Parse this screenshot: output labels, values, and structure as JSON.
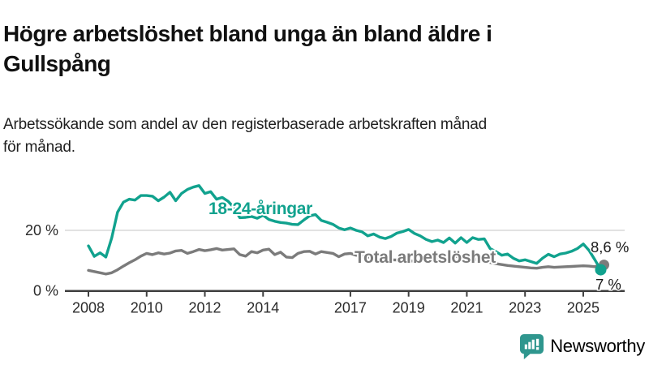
{
  "header": {
    "title_lines": [
      "Högre arbetslöshet bland unga än bland äldre i",
      "Gullspång"
    ],
    "subtitle_lines": [
      "Arbetssökande som andel av den registerbaserade arbetskraften månad",
      "för månad."
    ]
  },
  "colors": {
    "accent_teal": "#11a28e",
    "series_gray": "#7b7b7b",
    "logo_teal": "#2f968e",
    "grid": "#d9d9d9",
    "axis": "#3f3f3f",
    "text": "#1a1a1a"
  },
  "logo": {
    "text": "Newsworthy",
    "icon": "newsworthy-speech-bubble-bar-chart-icon"
  },
  "chart_data": {
    "type": "line",
    "title": "Högre arbetslöshet bland unga än bland äldre i Gullspång",
    "subtitle": "Arbetssökande som andel av den registerbaserade arbetskraften månad för månad.",
    "xlabel": "",
    "ylabel": "",
    "unit": "%",
    "x_unit": "year",
    "x_start": 2008.0,
    "x_step": 0.2,
    "xlim": [
      2008.0,
      2025.6
    ],
    "ylim": [
      0,
      37
    ],
    "grid": "horizontal-at-20-only",
    "y_gridlines": [
      20
    ],
    "x_ticks": [
      2008,
      2010,
      2012,
      2014,
      2017,
      2019,
      2021,
      2023,
      2025
    ],
    "y_ticks": [
      {
        "value": 0,
        "label": "0 %"
      },
      {
        "value": 20,
        "label": "20 %"
      }
    ],
    "legend_position": "inline-labels-on-lines",
    "series": [
      {
        "name": "Total arbetslöshet",
        "color": "#7b7b7b",
        "end_label": "8,6 %",
        "end_value": 8.6,
        "values": [
          6.8,
          6.4,
          6.0,
          5.6,
          6.0,
          7.0,
          8.2,
          9.3,
          10.3,
          11.5,
          12.4,
          12.0,
          12.6,
          12.2,
          12.5,
          13.2,
          13.4,
          12.4,
          13.0,
          13.7,
          13.3,
          13.6,
          14.0,
          13.5,
          13.7,
          13.9,
          12.0,
          11.5,
          13.0,
          12.6,
          13.5,
          13.8,
          12.0,
          12.8,
          11.2,
          11.0,
          12.4,
          13.0,
          13.1,
          12.2,
          13.0,
          12.7,
          12.4,
          11.3,
          12.2,
          12.4,
          11.8,
          11.5,
          11.2,
          11.0,
          10.8,
          10.5,
          10.3,
          10.2,
          10.0,
          9.8,
          9.9,
          10.0,
          9.8,
          9.9,
          10.2,
          11.0,
          11.6,
          11.4,
          11.2,
          11.0,
          10.6,
          10.2,
          9.8,
          9.4,
          9.0,
          8.7,
          8.4,
          8.2,
          8.0,
          7.8,
          7.6,
          7.5,
          7.8,
          8.0,
          7.8,
          7.9,
          8.0,
          8.1,
          8.2,
          8.3,
          8.2,
          8.0,
          8.6
        ]
      },
      {
        "name": "18-24-åringar",
        "color": "#11a28e",
        "end_label": "7 %",
        "end_value": 7.0,
        "values": [
          14.9,
          11.4,
          12.6,
          11.2,
          17.5,
          26.0,
          29.3,
          30.3,
          30.0,
          31.5,
          31.5,
          31.3,
          29.8,
          31.0,
          32.6,
          29.8,
          32.2,
          33.5,
          34.3,
          34.8,
          32.2,
          32.8,
          30.3,
          30.9,
          29.6,
          27.5,
          24.2,
          24.3,
          24.6,
          24.0,
          25.0,
          23.6,
          23.0,
          22.6,
          22.4,
          22.0,
          21.9,
          23.4,
          24.8,
          25.2,
          23.3,
          22.7,
          22.0,
          20.8,
          20.2,
          20.8,
          20.0,
          19.5,
          18.2,
          18.8,
          17.8,
          17.3,
          18.0,
          19.1,
          19.6,
          20.3,
          19.0,
          18.2,
          17.0,
          16.3,
          16.8,
          16.0,
          17.5,
          15.8,
          17.6,
          16.0,
          17.6,
          17.0,
          17.2,
          14.0,
          13.0,
          11.8,
          12.2,
          10.8,
          9.9,
          10.3,
          9.7,
          9.1,
          10.8,
          12.1,
          11.3,
          12.2,
          12.5,
          13.1,
          14.0,
          15.5,
          13.4,
          10.3,
          7.0
        ]
      }
    ]
  }
}
